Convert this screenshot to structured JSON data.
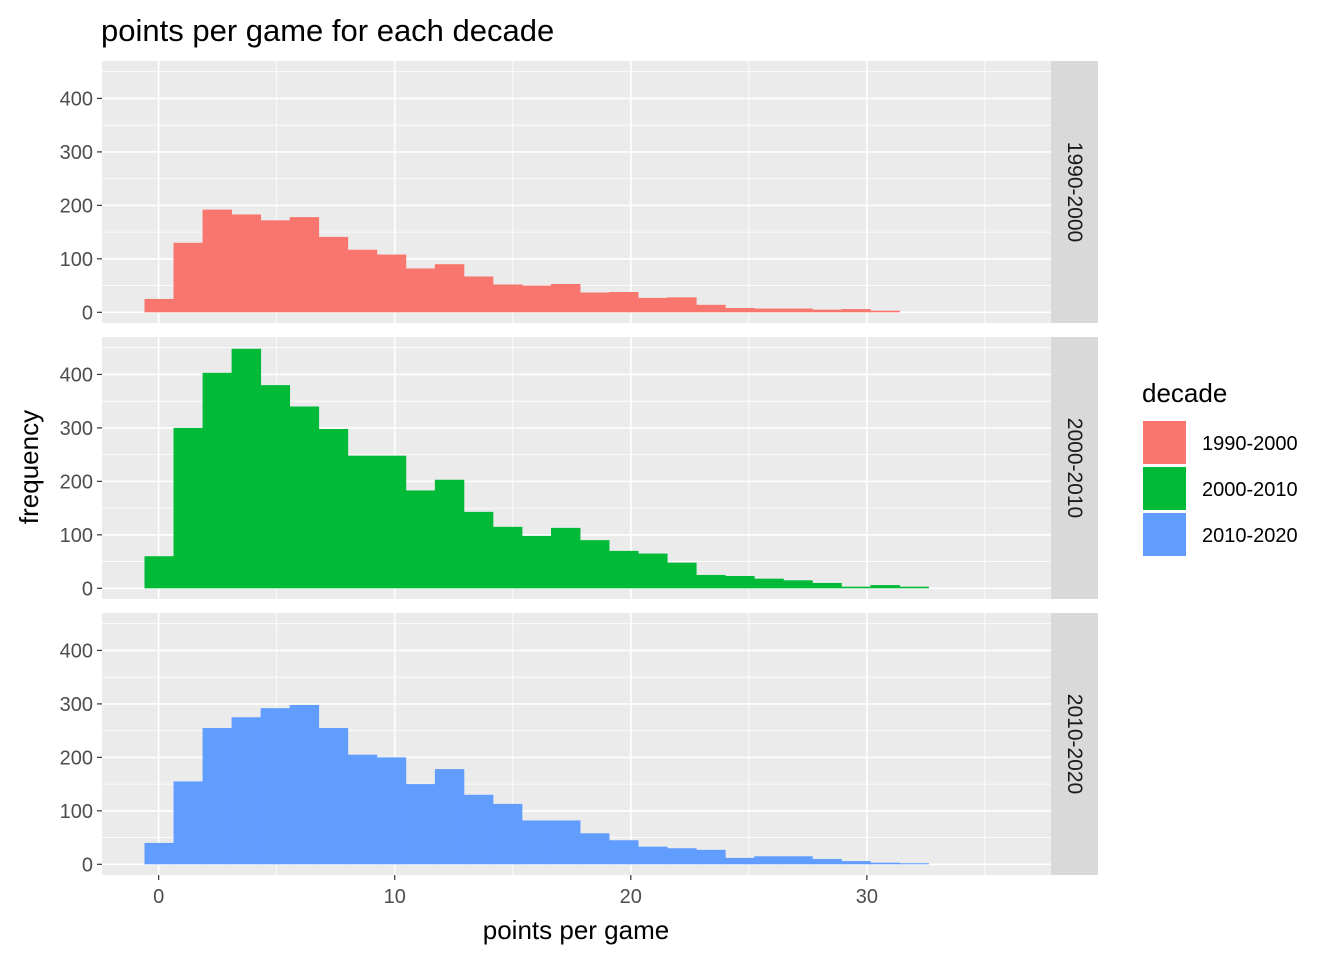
{
  "chart_data": {
    "type": "bar",
    "title": "points per game for each decade",
    "xlabel": "points per game",
    "ylabel": "frequency",
    "bin_width": 1.23,
    "bin_start": -0.6,
    "xlim": [
      -2.4,
      37.8
    ],
    "ylim": [
      -20,
      470
    ],
    "x_ticks": [
      0,
      10,
      20,
      30
    ],
    "y_ticks": [
      0,
      100,
      200,
      300,
      400
    ],
    "legend": {
      "title": "decade",
      "position": "right",
      "entries": [
        "1990-2000",
        "2000-2010",
        "2010-2020"
      ]
    },
    "colors": [
      "#F8766D",
      "#00BA38",
      "#619CFF"
    ],
    "panels": [
      {
        "name": "1990-2000",
        "values": [
          25,
          130,
          192,
          183,
          172,
          178,
          141,
          117,
          108,
          82,
          90,
          67,
          52,
          50,
          53,
          37,
          38,
          27,
          28,
          14,
          8,
          7,
          7,
          5,
          6,
          3
        ]
      },
      {
        "name": "2000-2010",
        "values": [
          60,
          300,
          403,
          448,
          380,
          340,
          298,
          248,
          248,
          183,
          203,
          143,
          115,
          98,
          113,
          90,
          70,
          65,
          48,
          25,
          23,
          18,
          15,
          10,
          3,
          6,
          3
        ]
      },
      {
        "name": "2010-2020",
        "values": [
          40,
          155,
          255,
          275,
          292,
          298,
          255,
          205,
          200,
          150,
          178,
          130,
          113,
          82,
          82,
          58,
          45,
          33,
          30,
          27,
          12,
          15,
          15,
          10,
          6,
          3,
          2
        ]
      }
    ]
  }
}
